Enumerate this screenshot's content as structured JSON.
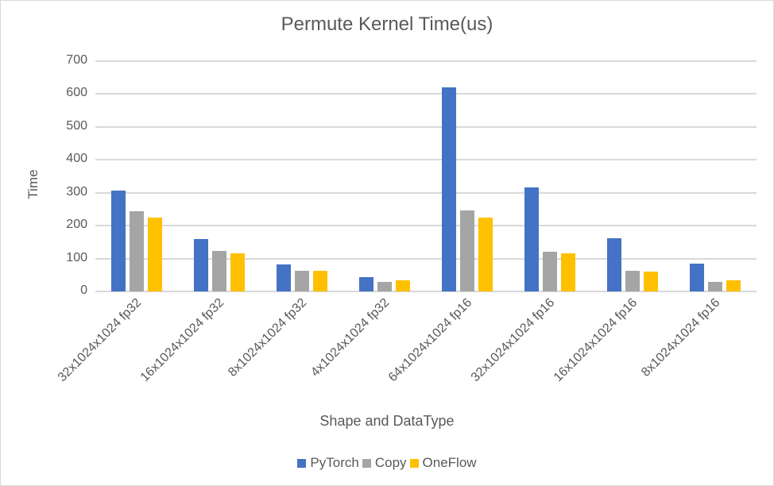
{
  "chart_data": {
    "type": "bar",
    "title": "Permute Kernel Time(us)",
    "xlabel": "Shape and DataType",
    "ylabel": "Time",
    "ylim": [
      0,
      700
    ],
    "yticks": [
      0,
      100,
      200,
      300,
      400,
      500,
      600,
      700
    ],
    "grid": true,
    "legend_position": "bottom",
    "categories": [
      "32x1024x1024 fp32",
      "16x1024x1024 fp32",
      "8x1024x1024 fp32",
      "4x1024x1024 fp32",
      "64x1024x1024 fp16",
      "32x1024x1024 fp16",
      "16x1024x1024 fp16",
      "8x1024x1024 fp16"
    ],
    "series": [
      {
        "name": "PyTorch",
        "color": "#4472C4",
        "values": [
          306,
          159,
          81,
          43,
          620,
          316,
          161,
          84
        ]
      },
      {
        "name": "Copy",
        "color": "#A5A5A5",
        "values": [
          243,
          122,
          62,
          30,
          246,
          120,
          62,
          30
        ]
      },
      {
        "name": "OneFlow",
        "color": "#FFC000",
        "values": [
          224,
          115,
          62,
          35,
          224,
          115,
          60,
          35
        ]
      }
    ]
  }
}
